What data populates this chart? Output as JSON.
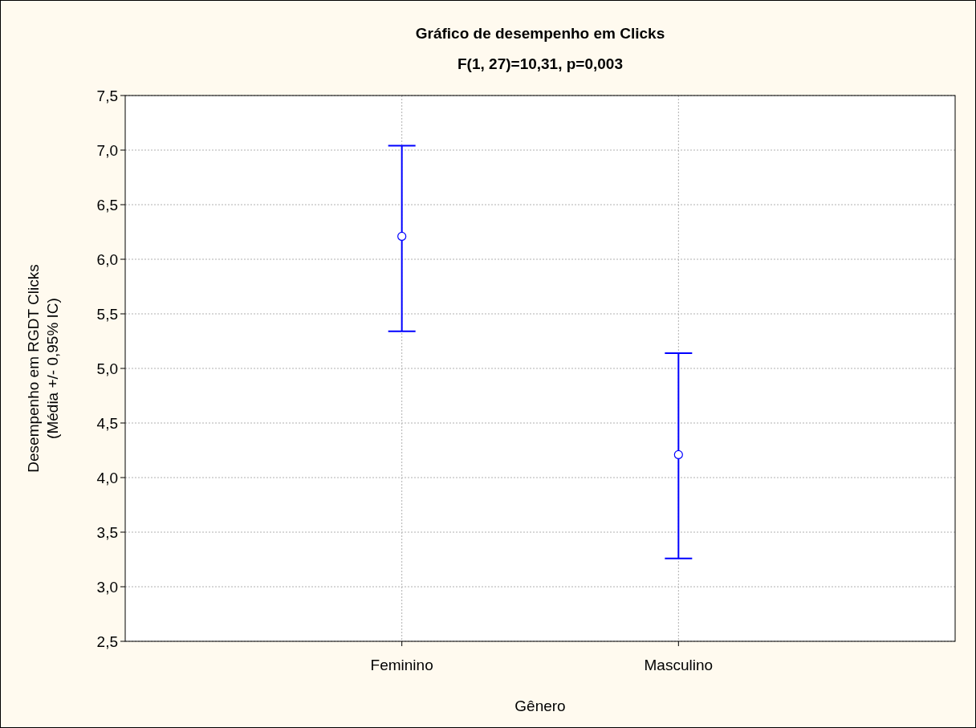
{
  "chart_data": {
    "type": "scatter",
    "title": "Gráfico de desempenho em Clicks",
    "subtitle": "F(1, 27)=10,31, p=0,003",
    "xlabel": "Gênero",
    "ylabel": "Desempenho em RGDT Clicks\n(Média +/- 0,95% IC)",
    "categories": [
      "Feminino",
      "Masculino"
    ],
    "series": [
      {
        "color": "#0000ff",
        "values": [
          6.21,
          4.21
        ],
        "errors": [
          [
            5.34,
            7.04
          ],
          [
            3.26,
            5.14
          ]
        ]
      }
    ],
    "ylim": [
      2.5,
      7.5
    ],
    "yticks": [
      {
        "value": 2.5,
        "label": "2,5"
      },
      {
        "value": 3,
        "label": "3,0"
      },
      {
        "value": 3.5,
        "label": "3,5"
      },
      {
        "value": 4,
        "label": "4,0"
      },
      {
        "value": 4.5,
        "label": "4,5"
      },
      {
        "value": 5,
        "label": "5,0"
      },
      {
        "value": 5.5,
        "label": "5,5"
      },
      {
        "value": 6,
        "label": "6,0"
      },
      {
        "value": 6.5,
        "label": "6,5"
      },
      {
        "value": 7,
        "label": "7,0"
      },
      {
        "value": 7.5,
        "label": "7,5"
      }
    ],
    "grid": true,
    "marker": "circle"
  }
}
